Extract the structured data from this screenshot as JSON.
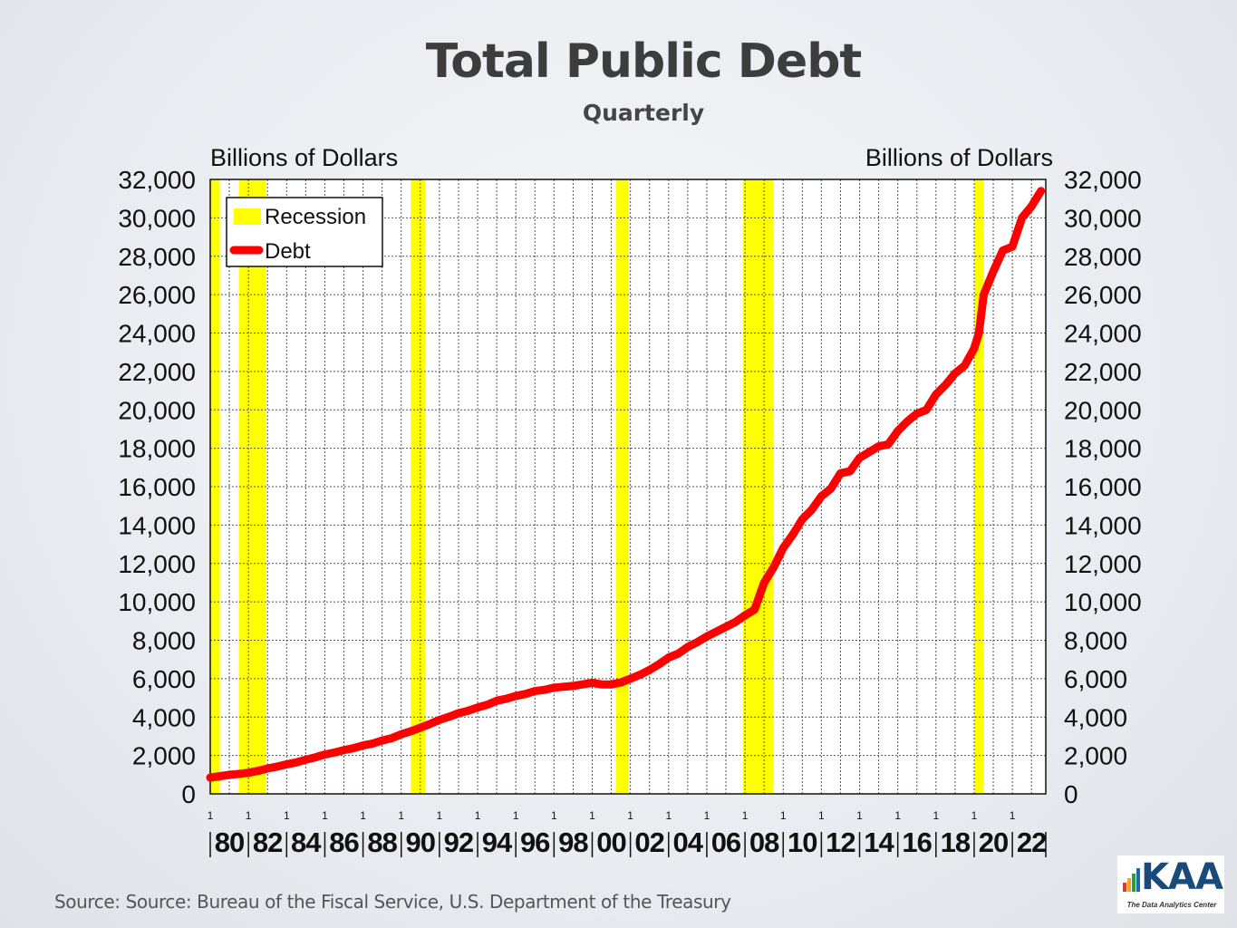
{
  "chart_data": {
    "type": "line",
    "title": "Total Public Debt",
    "subtitle": "Quarterly",
    "ylabel_left": "Billions of Dollars",
    "ylabel_right": "Billions of Dollars",
    "ylim": [
      0,
      32000
    ],
    "y_ticks": [
      "0",
      "2,000",
      "4,000",
      "6,000",
      "8,000",
      "10,000",
      "12,000",
      "14,000",
      "16,000",
      "18,000",
      "20,000",
      "22,000",
      "24,000",
      "26,000",
      "28,000",
      "30,000",
      "32,000"
    ],
    "xlim": [
      1980,
      2023.75
    ],
    "x_tick_labels": [
      "80",
      "82",
      "84",
      "86",
      "88",
      "90",
      "92",
      "94",
      "96",
      "98",
      "00",
      "02",
      "04",
      "06",
      "08",
      "10",
      "12",
      "14",
      "16",
      "18",
      "20",
      "22"
    ],
    "x_tick_minor_label": "1",
    "grid": true,
    "legend": {
      "position": "top-left",
      "items": [
        {
          "label": "Recession",
          "color": "#ffff00"
        },
        {
          "label": "Debt",
          "color": "#ff0000"
        }
      ]
    },
    "recessions": [
      [
        1980.0,
        1980.5
      ],
      [
        1981.5,
        1982.9
      ],
      [
        1990.5,
        1991.25
      ],
      [
        2001.25,
        2001.9
      ],
      [
        2007.9,
        2009.5
      ],
      [
        2020.0,
        2020.5
      ]
    ],
    "series": [
      {
        "name": "Debt",
        "color": "#ff0000",
        "x": [
          1980,
          1980.5,
          1981,
          1981.5,
          1982,
          1982.5,
          1983,
          1983.5,
          1984,
          1984.5,
          1985,
          1985.5,
          1986,
          1986.5,
          1987,
          1987.5,
          1988,
          1988.5,
          1989,
          1989.5,
          1990,
          1990.5,
          1991,
          1991.5,
          1992,
          1992.5,
          1993,
          1993.5,
          1994,
          1994.5,
          1995,
          1995.5,
          1996,
          1996.5,
          1997,
          1997.5,
          1998,
          1998.5,
          1999,
          1999.5,
          2000,
          2000.5,
          2001,
          2001.5,
          2002,
          2002.5,
          2003,
          2003.5,
          2004,
          2004.5,
          2005,
          2005.5,
          2006,
          2006.5,
          2007,
          2007.5,
          2008,
          2008.5,
          2009,
          2009.5,
          2010,
          2010.5,
          2011,
          2011.5,
          2012,
          2012.5,
          2013,
          2013.5,
          2014,
          2014.5,
          2015,
          2015.5,
          2016,
          2016.5,
          2017,
          2017.5,
          2018,
          2018.5,
          2019,
          2019.5,
          2020,
          2020.25,
          2020.5,
          2021,
          2021.5,
          2022,
          2022.5,
          2023,
          2023.5
        ],
        "values": [
          850,
          920,
          990,
          1040,
          1100,
          1200,
          1320,
          1420,
          1540,
          1640,
          1780,
          1900,
          2050,
          2150,
          2280,
          2380,
          2520,
          2620,
          2780,
          2900,
          3100,
          3260,
          3450,
          3640,
          3850,
          4010,
          4200,
          4330,
          4500,
          4640,
          4850,
          4950,
          5100,
          5200,
          5350,
          5420,
          5530,
          5580,
          5620,
          5700,
          5780,
          5700,
          5700,
          5800,
          6000,
          6200,
          6450,
          6750,
          7100,
          7300,
          7650,
          7900,
          8200,
          8450,
          8700,
          8950,
          9300,
          9600,
          11000,
          11800,
          12800,
          13500,
          14300,
          14800,
          15500,
          15900,
          16700,
          16800,
          17500,
          17800,
          18100,
          18200,
          18900,
          19400,
          19800,
          20000,
          20800,
          21300,
          21900,
          22300,
          23200,
          24000,
          26000,
          27200,
          28300,
          28500,
          30000,
          30600,
          31400
        ]
      }
    ]
  },
  "footer": {
    "source": "Source:  Source: Bureau of the Fiscal Service, U.S. Department of the Treasury"
  },
  "logo": {
    "text": "KAA",
    "tagline": "The Data Analytics Center",
    "bar_colors": [
      "#e23a2a",
      "#f5a623",
      "#2e9e3a",
      "#1a6ab0"
    ]
  }
}
